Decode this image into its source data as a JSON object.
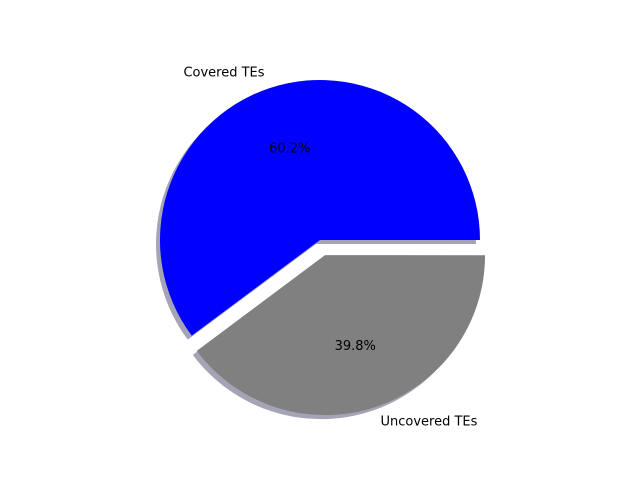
{
  "chart_data": {
    "type": "pie",
    "slices": [
      {
        "label": "Covered TEs",
        "value": 60.2,
        "pct_label": "60.2%",
        "color": "#0000ff",
        "explode": false
      },
      {
        "label": "Uncovered TEs",
        "value": 39.8,
        "pct_label": "39.8%",
        "color": "#808080",
        "explode": true
      }
    ],
    "start_angle_deg": 0,
    "direction": "counterclockwise",
    "shadow": true,
    "shadow_color": "#5a5a7a",
    "title": "",
    "legend": false
  }
}
